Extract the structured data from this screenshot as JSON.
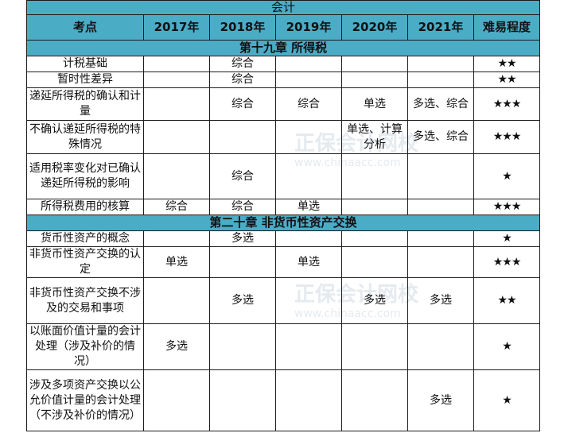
{
  "title": "会计",
  "headers": [
    "考点",
    "2017年",
    "2018年",
    "2019年",
    "2020年",
    "2021年",
    "难易程度"
  ],
  "sections": [
    {
      "chapter": "第十九章  所得税",
      "rows": [
        {
          "topic": "计税基础",
          "y2017": "",
          "y2018": "综合",
          "y2019": "",
          "y2020": "",
          "y2021": "",
          "difficulty": "★★",
          "h": 20
        },
        {
          "topic": "暂时性差异",
          "y2017": "",
          "y2018": "综合",
          "y2019": "",
          "y2020": "",
          "y2021": "",
          "difficulty": "★★",
          "h": 20
        },
        {
          "topic": "递延所得税的确认和计量",
          "y2017": "",
          "y2018": "综合",
          "y2019": "综合",
          "y2020": "单选",
          "y2021": "多选、综合",
          "difficulty": "★★★",
          "h": 41
        },
        {
          "topic": "不确认递延所得税的特殊情况",
          "y2017": "",
          "y2018": "",
          "y2019": "",
          "y2020": "单选、计算分析",
          "y2021": "多选、综合",
          "difficulty": "★★★",
          "h": 42
        },
        {
          "topic": "适用税率变化对已确认递延所得税的影响",
          "y2017": "",
          "y2018": "综合",
          "y2019": "",
          "y2020": "",
          "y2021": "",
          "difficulty": "★",
          "h": 57
        },
        {
          "topic": "所得税费用的核算",
          "y2017": "综合",
          "y2018": "综合",
          "y2019": "单选",
          "y2020": "",
          "y2021": "",
          "difficulty": "★★★",
          "h": 20
        }
      ]
    },
    {
      "chapter": "第二十章  非货币性资产交换",
      "rows": [
        {
          "topic": "货币性资产的概念",
          "y2017": "",
          "y2018": "多选",
          "y2019": "",
          "y2020": "",
          "y2021": "",
          "difficulty": "★",
          "h": 20
        },
        {
          "topic": "非货币性资产交换的认定",
          "y2017": "单选",
          "y2018": "",
          "y2019": "单选",
          "y2020": "",
          "y2021": "",
          "difficulty": "★★★",
          "h": 39
        },
        {
          "topic": "非货币性资产交换不涉及的交易和事项",
          "y2017": "",
          "y2018": "多选",
          "y2019": "",
          "y2020": "多选",
          "y2021": "多选",
          "difficulty": "★★",
          "h": 58
        },
        {
          "topic": "以账面价值计量的会计处理（涉及补价的情况）",
          "y2017": "多选",
          "y2018": "",
          "y2019": "",
          "y2020": "",
          "y2021": "",
          "difficulty": "★",
          "h": 58
        },
        {
          "topic": "涉及多项资产交换以公允价值计量的会计处理（不涉及补价的情况）",
          "y2017": "",
          "y2018": "",
          "y2019": "",
          "y2020": "",
          "y2021": "多选",
          "difficulty": "★",
          "h": 77
        }
      ]
    }
  ],
  "watermark": {
    "name": "正保会计网校",
    "url": "www.chinaacc.com"
  }
}
